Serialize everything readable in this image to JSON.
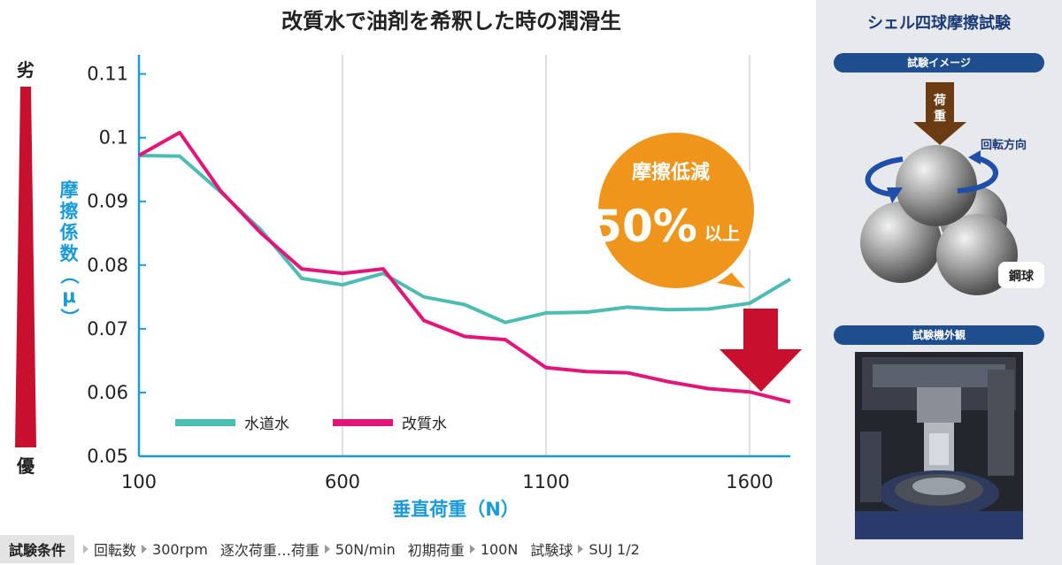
{
  "chart_data": {
    "type": "line",
    "title": "改質水で油剤を希釈した時の潤滑生",
    "xlabel": "垂直荷重（N）",
    "ylabel": "摩擦係数（μ）",
    "xlim": [
      100,
      1700
    ],
    "ylim": [
      0.05,
      0.113
    ],
    "x_ticks": [
      "100",
      "600",
      "1100",
      "1600"
    ],
    "y_ticks": [
      "0.11",
      "0.1",
      "0.09",
      "0.08",
      "0.07",
      "0.06",
      "0.05"
    ],
    "grid": "vertical",
    "legend_position": "bottom-left",
    "series": [
      {
        "name": "水道水",
        "color": "#4dbdb3",
        "x": [
          100,
          200,
          300,
          400,
          500,
          600,
          700,
          800,
          900,
          1000,
          1100,
          1200,
          1300,
          1400,
          1500,
          1600,
          1700
        ],
        "values": [
          0.0972,
          0.0971,
          0.0915,
          0.0855,
          0.0779,
          0.0769,
          0.0787,
          0.075,
          0.0738,
          0.071,
          0.0725,
          0.0726,
          0.0734,
          0.073,
          0.0731,
          0.074,
          0.0778
        ]
      },
      {
        "name": "改質水",
        "color": "#e3157a",
        "x": [
          100,
          200,
          300,
          400,
          500,
          600,
          700,
          800,
          900,
          1000,
          1100,
          1200,
          1300,
          1400,
          1500,
          1600,
          1700
        ],
        "values": [
          0.0972,
          0.1008,
          0.0917,
          0.085,
          0.0794,
          0.0787,
          0.0794,
          0.0713,
          0.0688,
          0.0683,
          0.0639,
          0.0633,
          0.0631,
          0.0617,
          0.0606,
          0.0601,
          0.0585
        ]
      }
    ],
    "scale_top": "劣",
    "scale_bottom": "優",
    "callout_line1": "摩擦低減",
    "callout_big": "50%",
    "callout_small": "以上"
  },
  "side_panel": {
    "title": "シェル四球摩擦試験",
    "image_label": "試験イメージ",
    "load_label": "荷重",
    "rotation_label": "回転方向",
    "ball_label": "鋼球",
    "machine_label": "試験機外観"
  },
  "conditions": {
    "label": "試験条件",
    "items": [
      "回転数",
      "300rpm",
      "逐次荷重…荷重",
      "50N/min",
      "初期荷重",
      "100N",
      "試験球",
      "SUJ 1/2"
    ]
  },
  "colors": {
    "axis": "#1a9bd7",
    "grid": "#c8c8c8",
    "scale_bar": "#c8102e",
    "callout": "#f0951b",
    "down_arrow": "#c8102e",
    "side_navy": "#1a3b78"
  }
}
